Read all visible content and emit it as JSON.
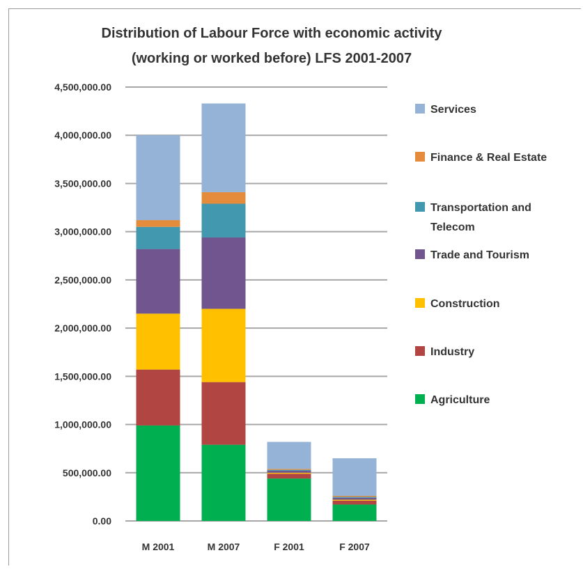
{
  "chart_data": {
    "type": "bar",
    "stacked": true,
    "title": [
      "Distribution of Labour Force with economic activity",
      "(working or worked before) LFS 2001-2007"
    ],
    "xlabel": "",
    "ylabel": "",
    "ylim": [
      0,
      4500000
    ],
    "yticks": [
      0,
      500000,
      1000000,
      1500000,
      2000000,
      2500000,
      3000000,
      3500000,
      4000000,
      4500000
    ],
    "ytick_labels": [
      "0.00",
      "500,000.00",
      "1,000,000.00",
      "1,500,000.00",
      "2,000,000.00",
      "2,500,000.00",
      "3,000,000.00",
      "3,500,000.00",
      "4,000,000.00",
      "4,500,000.00"
    ],
    "grid": true,
    "legend_position": "right",
    "categories": [
      "M 2001",
      "M 2007",
      "F 2001",
      "F 2007"
    ],
    "series": [
      {
        "name": "Agriculture",
        "color": "#00b050",
        "values": [
          990000,
          790000,
          440000,
          170000
        ]
      },
      {
        "name": "Industry",
        "color": "#b04542",
        "values": [
          580000,
          650000,
          50000,
          40000
        ]
      },
      {
        "name": "Construction",
        "color": "#ffc000",
        "values": [
          580000,
          760000,
          10000,
          10000
        ]
      },
      {
        "name": "Trade and Tourism",
        "color": "#71558f",
        "values": [
          670000,
          740000,
          20000,
          20000
        ]
      },
      {
        "name": "Transportation and Telecom",
        "color": "#4198af",
        "values": [
          230000,
          350000,
          10000,
          10000
        ]
      },
      {
        "name": "Finance & Real Estate",
        "color": "#e48c3c",
        "values": [
          70000,
          120000,
          10000,
          10000
        ]
      },
      {
        "name": "Services",
        "color": "#95b3d7",
        "values": [
          880000,
          920000,
          280000,
          390000
        ]
      }
    ]
  }
}
